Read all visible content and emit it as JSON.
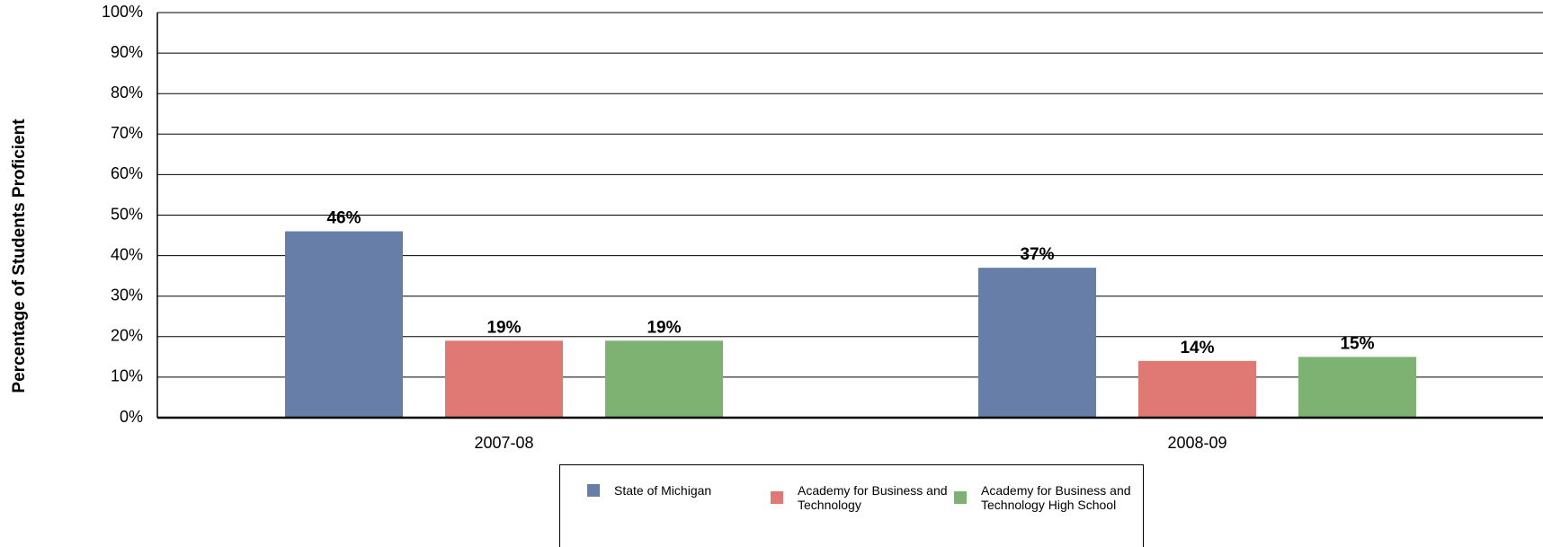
{
  "chart_data": {
    "type": "bar",
    "y_label": "Percentage of Students Proficient",
    "categories": [
      "2007-08",
      "2008-09"
    ],
    "series": [
      {
        "name": "State of Michigan",
        "color": "#667ea8",
        "values": [
          46,
          37
        ],
        "value_labels": [
          "46%",
          "37%"
        ]
      },
      {
        "name": "Academy for Business and Technology",
        "color": "#e07873",
        "values": [
          19,
          14
        ],
        "value_labels": [
          "19%",
          "14%"
        ]
      },
      {
        "name": "Academy for Business and Technology High School",
        "color": "#7db272",
        "values": [
          19,
          15
        ],
        "value_labels": [
          "19%",
          "15%"
        ]
      }
    ],
    "ylim": [
      0,
      100
    ],
    "yticks": [
      {
        "value": 0,
        "label": "0%"
      },
      {
        "value": 10,
        "label": "10%"
      },
      {
        "value": 20,
        "label": "20%"
      },
      {
        "value": 30,
        "label": "30%"
      },
      {
        "value": 40,
        "label": "40%"
      },
      {
        "value": 50,
        "label": "50%"
      },
      {
        "value": 60,
        "label": "60%"
      },
      {
        "value": 70,
        "label": "70%"
      },
      {
        "value": 80,
        "label": "80%"
      },
      {
        "value": 90,
        "label": "90%"
      },
      {
        "value": 100,
        "label": "100%"
      }
    ],
    "grid": true,
    "legend": "bottom"
  }
}
